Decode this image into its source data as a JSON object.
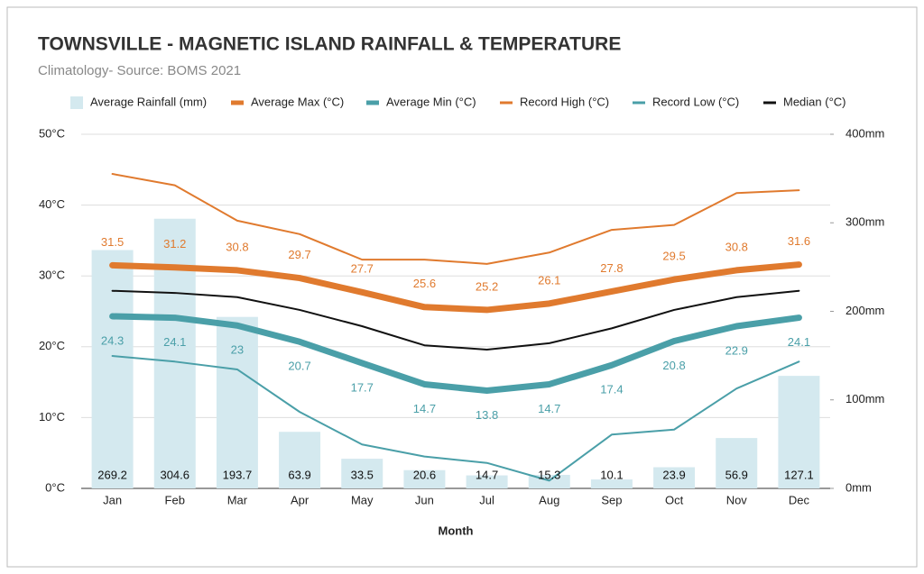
{
  "chart_data": {
    "type": "combo",
    "title": "TOWNSVILLE - MAGNETIC ISLAND RAINFALL & TEMPERATURE",
    "subtitle": "Climatology- Source: BOMS 2021",
    "x_label": "Month",
    "categories": [
      "Jan",
      "Feb",
      "Mar",
      "Apr",
      "May",
      "Jun",
      "Jul",
      "Aug",
      "Sep",
      "Oct",
      "Nov",
      "Dec"
    ],
    "ylim": [
      0,
      50
    ],
    "yticks": [
      {
        "value": 0,
        "label": "0°C"
      },
      {
        "value": 10,
        "label": "10°C"
      },
      {
        "value": 20,
        "label": "20°C"
      },
      {
        "value": 30,
        "label": "30°C"
      },
      {
        "value": 40,
        "label": "40°C"
      },
      {
        "value": 50,
        "label": "50°C"
      }
    ],
    "y2lim": [
      0,
      400
    ],
    "y2ticks": [
      {
        "value": 0,
        "label": "0mm"
      },
      {
        "value": 100,
        "label": "100mm"
      },
      {
        "value": 200,
        "label": "200mm"
      },
      {
        "value": 300,
        "label": "300mm"
      },
      {
        "value": 400,
        "label": "400mm"
      }
    ],
    "grid": true,
    "legend": "top",
    "series": [
      {
        "name": "Average Rainfall (mm)",
        "type": "bar",
        "axis": "y2",
        "color": "#d4e9ef",
        "label_position": "base",
        "values": [
          269.2,
          304.6,
          193.7,
          63.9,
          33.5,
          20.6,
          14.7,
          15.3,
          10.1,
          23.9,
          56.9,
          127.1
        ]
      },
      {
        "name": "Average Max (°C)",
        "type": "line",
        "color": "#e07a2e",
        "line_width": 7,
        "label_position": "above",
        "values": [
          31.5,
          31.2,
          30.8,
          29.7,
          27.7,
          25.6,
          25.2,
          26.1,
          27.8,
          29.5,
          30.8,
          31.6
        ]
      },
      {
        "name": "Average Min (°C)",
        "type": "line",
        "color": "#4a9fa8",
        "line_width": 7,
        "label_position": "below",
        "values": [
          24.3,
          24.1,
          23,
          20.7,
          17.7,
          14.7,
          13.8,
          14.7,
          17.4,
          20.8,
          22.9,
          24.1
        ]
      },
      {
        "name": "Record High (°C)",
        "type": "line",
        "color": "#e07a2e",
        "line_width": 2,
        "values": [
          44.4,
          42.8,
          37.8,
          35.9,
          32.3,
          32.3,
          31.7,
          33.3,
          36.5,
          37.2,
          41.7,
          42.1
        ]
      },
      {
        "name": "Record Low (°C)",
        "type": "line",
        "color": "#4a9fa8",
        "line_width": 2,
        "values": [
          18.7,
          17.9,
          16.8,
          10.8,
          6.2,
          4.5,
          3.6,
          1.1,
          7.6,
          8.3,
          14.1,
          17.9
        ]
      },
      {
        "name": "Median  (°C)",
        "type": "line",
        "color": "#111111",
        "line_width": 2,
        "values": [
          27.9,
          27.6,
          27.0,
          25.2,
          22.9,
          20.2,
          19.6,
          20.5,
          22.6,
          25.2,
          27.0,
          27.9
        ]
      }
    ]
  }
}
